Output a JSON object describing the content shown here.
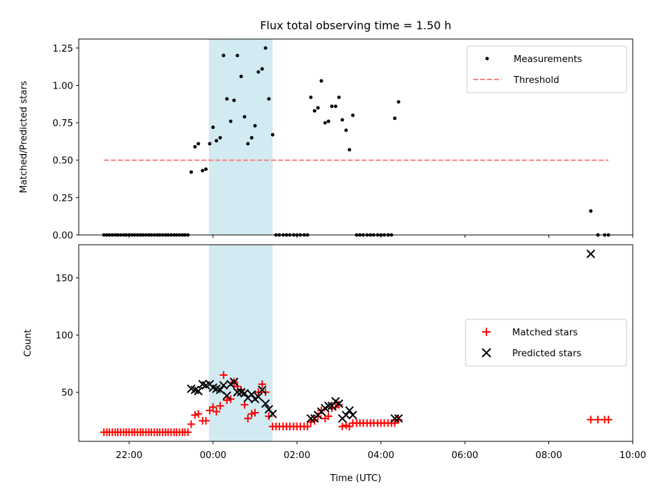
{
  "chart_data": {
    "type": "scatter",
    "title": "Flux total observing time = 1.50 h",
    "xlabel": "Time (UTC)",
    "x_unit": "hours since 00:00 UTC",
    "xlim": [
      -3.2,
      10.0
    ],
    "x_ticks": [
      {
        "value": -2,
        "label": "22:00"
      },
      {
        "value": 0,
        "label": "00:00"
      },
      {
        "value": 2,
        "label": "02:00"
      },
      {
        "value": 4,
        "label": "04:00"
      },
      {
        "value": 6,
        "label": "06:00"
      },
      {
        "value": 8,
        "label": "08:00"
      },
      {
        "value": 10,
        "label": "10:00"
      }
    ],
    "shaded_span": {
      "x0": -0.1,
      "x1": 1.42,
      "color": "#add8e6"
    },
    "panels": [
      {
        "name": "ratio",
        "ylabel": "Matched/Predicted stars",
        "ylim": [
          0,
          1.31
        ],
        "y_ticks": [
          0.0,
          0.25,
          0.5,
          0.75,
          1.0,
          1.25
        ],
        "y_tick_labels": [
          "0.00",
          "0.25",
          "0.50",
          "0.75",
          "1.00",
          "1.25"
        ],
        "legend": {
          "position": "upper right",
          "entries": [
            {
              "label": "Measurements",
              "marker": "dot",
              "color": "#000000"
            },
            {
              "label": "Threshold",
              "marker": "dashed-line",
              "color": "#ff7f7f"
            }
          ]
        },
        "series": [
          {
            "name": "Measurements",
            "marker": "dot",
            "color": "#000000",
            "x": [
              -2.6,
              -2.53,
              -2.47,
              -2.4,
              -2.33,
              -2.27,
              -2.2,
              -2.13,
              -2.07,
              -2.0,
              -1.93,
              -1.87,
              -1.8,
              -1.73,
              -1.67,
              -1.6,
              -1.53,
              -1.47,
              -1.4,
              -1.33,
              -1.27,
              -1.2,
              -1.13,
              -1.07,
              -1.0,
              -0.93,
              -0.87,
              -0.8,
              -0.73,
              -0.67,
              -0.6,
              -0.52,
              -0.43,
              -0.35,
              -0.25,
              -0.17,
              -0.08,
              0.0,
              0.08,
              0.17,
              0.25,
              0.33,
              0.42,
              0.5,
              0.58,
              0.67,
              0.75,
              0.83,
              0.92,
              1.0,
              1.08,
              1.17,
              1.25,
              1.33,
              1.42,
              1.5,
              1.58,
              1.67,
              1.75,
              1.83,
              1.92,
              2.0,
              2.08,
              2.17,
              2.25,
              2.33,
              2.42,
              2.5,
              2.58,
              2.67,
              2.75,
              2.83,
              2.92,
              3.0,
              3.08,
              3.17,
              3.25,
              3.33,
              3.42,
              3.5,
              3.58,
              3.67,
              3.75,
              3.83,
              3.92,
              4.0,
              4.08,
              4.17,
              4.25,
              4.33,
              4.42,
              9.0,
              9.17,
              9.33,
              9.42
            ],
            "y": [
              0,
              0,
              0,
              0,
              0,
              0,
              0,
              0,
              0,
              0,
              0,
              0,
              0,
              0,
              0,
              0,
              0,
              0,
              0,
              0,
              0,
              0,
              0,
              0,
              0,
              0,
              0,
              0,
              0,
              0,
              0,
              0.42,
              0.59,
              0.61,
              0.43,
              0.44,
              0.61,
              0.72,
              0.63,
              0.65,
              1.2,
              0.91,
              0.76,
              0.9,
              1.2,
              1.06,
              0.79,
              0.61,
              0.65,
              0.73,
              1.09,
              1.11,
              1.25,
              0.91,
              0.67,
              0,
              0,
              0,
              0,
              0,
              0,
              0,
              0,
              0,
              0,
              0.92,
              0.83,
              0.85,
              1.03,
              0.75,
              0.76,
              0.86,
              0.86,
              0.92,
              0.77,
              0.7,
              0.57,
              0.8,
              0,
              0,
              0,
              0,
              0,
              0,
              0,
              0,
              0,
              0,
              0,
              0.78,
              0.89,
              0.16,
              0,
              0,
              0
            ]
          },
          {
            "name": "Threshold",
            "style": "dashed",
            "color": "#ff7f7f",
            "x": [
              -2.6,
              9.42
            ],
            "y": [
              0.5,
              0.5
            ]
          }
        ]
      },
      {
        "name": "counts",
        "ylabel": "Count",
        "ylim": [
          7,
          179
        ],
        "y_ticks": [
          50,
          100,
          150
        ],
        "y_tick_labels": [
          "50",
          "100",
          "150"
        ],
        "legend": {
          "position": "center right",
          "entries": [
            {
              "label": "Matched stars",
              "marker": "plus",
              "color": "#ff0000"
            },
            {
              "label": "Predicted stars",
              "marker": "x",
              "color": "#000000"
            }
          ]
        },
        "series": [
          {
            "name": "Matched stars",
            "marker": "plus",
            "color": "#ff0000",
            "x": [
              -2.6,
              -2.53,
              -2.47,
              -2.4,
              -2.33,
              -2.27,
              -2.2,
              -2.13,
              -2.07,
              -2.0,
              -1.93,
              -1.87,
              -1.8,
              -1.73,
              -1.67,
              -1.6,
              -1.53,
              -1.47,
              -1.4,
              -1.33,
              -1.27,
              -1.2,
              -1.13,
              -1.07,
              -1.0,
              -0.93,
              -0.87,
              -0.8,
              -0.73,
              -0.67,
              -0.6,
              -0.52,
              -0.43,
              -0.35,
              -0.25,
              -0.17,
              -0.08,
              0.0,
              0.08,
              0.17,
              0.25,
              0.33,
              0.42,
              0.5,
              0.58,
              0.67,
              0.75,
              0.83,
              0.92,
              1.0,
              1.08,
              1.17,
              1.25,
              1.33,
              1.42,
              1.5,
              1.58,
              1.67,
              1.75,
              1.83,
              1.92,
              2.0,
              2.08,
              2.17,
              2.25,
              2.33,
              2.42,
              2.5,
              2.58,
              2.67,
              2.75,
              2.83,
              2.92,
              3.0,
              3.08,
              3.17,
              3.25,
              3.33,
              3.42,
              3.5,
              3.58,
              3.67,
              3.75,
              3.83,
              3.92,
              4.0,
              4.08,
              4.17,
              4.25,
              4.33,
              4.42,
              9.0,
              9.17,
              9.33,
              9.42
            ],
            "y": [
              15,
              15,
              15,
              15,
              15,
              15,
              15,
              15,
              15,
              15,
              15,
              15,
              15,
              15,
              15,
              15,
              15,
              15,
              15,
              15,
              15,
              15,
              15,
              15,
              15,
              15,
              15,
              15,
              15,
              15,
              15,
              22,
              30,
              31,
              25,
              25,
              34,
              37,
              33,
              38,
              65,
              43,
              44,
              59,
              55,
              52,
              39,
              27,
              31,
              32,
              50,
              57,
              50,
              29,
              20,
              20,
              20,
              20,
              20,
              20,
              20,
              20,
              20,
              20,
              20,
              24,
              25,
              29,
              34,
              27,
              29,
              36,
              37,
              39,
              20,
              21,
              20,
              23,
              23,
              23,
              23,
              23,
              23,
              23,
              23,
              23,
              23,
              23,
              23,
              23,
              26,
              26,
              26,
              26,
              26
            ]
          },
          {
            "name": "Predicted stars",
            "marker": "x",
            "color": "#000000",
            "x": [
              -0.52,
              -0.43,
              -0.35,
              -0.25,
              -0.17,
              -0.08,
              0.0,
              0.08,
              0.17,
              0.25,
              0.33,
              0.42,
              0.5,
              0.58,
              0.67,
              0.75,
              0.83,
              0.92,
              1.0,
              1.08,
              1.17,
              1.25,
              1.33,
              1.42,
              2.33,
              2.42,
              2.5,
              2.58,
              2.67,
              2.75,
              2.83,
              2.92,
              3.0,
              3.08,
              3.17,
              3.25,
              3.33,
              4.33,
              4.42,
              9.0
            ],
            "y": [
              53,
              52,
              51,
              57,
              56,
              57,
              54,
              53,
              52,
              56,
              47,
              57,
              59,
              50,
              50,
              49,
              45,
              48,
              44,
              46,
              52,
              40,
              35,
              31,
              27,
              27,
              30,
              33,
              36,
              38,
              38,
              42,
              40,
              27,
              30,
              34,
              30,
              27,
              27,
              171
            ]
          }
        ]
      }
    ]
  }
}
